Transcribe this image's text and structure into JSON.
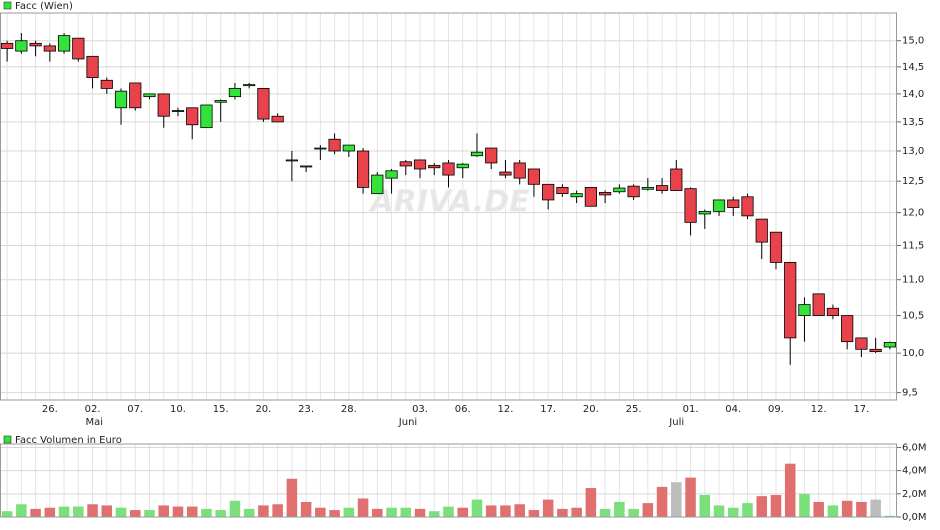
{
  "chart_data": [
    {
      "type": "candlestick",
      "log_scale": true,
      "grid": true,
      "up_color": "#33e33a",
      "down_color": "#e8424a",
      "watermark": "ARIVA.DE",
      "categories": [
        null,
        null,
        null,
        "26.",
        null,
        null,
        "02.",
        null,
        null,
        "07.",
        null,
        null,
        "10.",
        null,
        null,
        "15.",
        null,
        null,
        "20.",
        null,
        null,
        "23.",
        null,
        null,
        "28.",
        null,
        null,
        null,
        null,
        "03.",
        null,
        null,
        "06.",
        null,
        null,
        "12.",
        null,
        null,
        "17.",
        null,
        null,
        "20.",
        null,
        null,
        "25.",
        null,
        null,
        null,
        "01.",
        null,
        null,
        "04.",
        null,
        null,
        "09.",
        null,
        null,
        "12.",
        null,
        null,
        "17.",
        null,
        null,
        null
      ],
      "months": [
        null,
        null,
        null,
        null,
        null,
        null,
        "Mai",
        null,
        null,
        null,
        null,
        null,
        null,
        null,
        null,
        null,
        null,
        null,
        null,
        null,
        null,
        null,
        null,
        null,
        null,
        null,
        null,
        null,
        "Juni",
        null,
        null,
        null,
        null,
        null,
        null,
        null,
        null,
        null,
        null,
        null,
        null,
        null,
        null,
        null,
        null,
        null,
        null,
        "Juli",
        null,
        null,
        null,
        null,
        null,
        null,
        null,
        null,
        null,
        null,
        null,
        null,
        null,
        null,
        null
      ],
      "series": [
        {
          "name": "Facc (Wien)",
          "open": [
            14.95,
            14.8,
            14.95,
            14.9,
            14.8,
            15.05,
            14.7,
            14.25,
            13.75,
            14.2,
            13.95,
            14.0,
            13.7,
            13.75,
            13.4,
            13.85,
            13.95,
            14.15,
            14.1,
            13.6,
            12.85,
            12.75,
            13.05,
            13.2,
            13.0,
            13.0,
            12.3,
            12.55,
            12.82,
            12.85,
            12.76,
            12.8,
            12.72,
            12.92,
            13.05,
            12.65,
            12.8,
            12.7,
            12.45,
            12.4,
            12.25,
            12.4,
            12.32,
            12.33,
            12.42,
            12.37,
            12.43,
            12.7,
            12.38,
            11.98,
            12.02,
            12.2,
            12.25,
            11.9,
            11.7,
            11.25,
            10.5,
            10.8,
            10.6,
            10.5,
            10.2,
            10.05,
            10.08
          ],
          "high": [
            15.0,
            15.15,
            15.0,
            14.95,
            15.15,
            15.05,
            14.7,
            14.3,
            14.1,
            14.2,
            14.0,
            14.0,
            13.75,
            13.75,
            13.8,
            13.9,
            14.2,
            14.2,
            14.1,
            13.65,
            13.0,
            12.75,
            13.1,
            13.3,
            13.1,
            13.05,
            12.65,
            12.7,
            12.85,
            12.85,
            12.8,
            12.85,
            12.8,
            13.3,
            13.05,
            12.85,
            12.85,
            12.7,
            12.45,
            12.45,
            12.35,
            12.4,
            12.35,
            12.45,
            12.45,
            12.55,
            12.55,
            12.85,
            12.4,
            12.05,
            12.2,
            12.25,
            12.3,
            11.9,
            11.7,
            11.25,
            10.75,
            10.8,
            10.65,
            10.5,
            10.2,
            10.2,
            10.15
          ],
          "low": [
            14.6,
            14.75,
            14.7,
            14.6,
            14.75,
            14.6,
            14.1,
            14.0,
            13.45,
            13.7,
            13.9,
            13.4,
            13.6,
            13.2,
            13.4,
            13.5,
            13.9,
            14.1,
            13.5,
            13.5,
            12.5,
            12.65,
            12.85,
            12.95,
            12.9,
            12.3,
            12.3,
            12.3,
            12.6,
            12.55,
            12.6,
            12.4,
            12.55,
            12.9,
            12.7,
            12.55,
            12.45,
            12.25,
            12.05,
            12.25,
            12.15,
            12.1,
            12.15,
            12.3,
            12.2,
            12.35,
            12.3,
            12.35,
            11.65,
            11.75,
            11.95,
            11.95,
            11.9,
            11.3,
            11.15,
            9.85,
            10.15,
            10.5,
            10.45,
            10.05,
            9.95,
            10.0,
            10.05
          ],
          "close": [
            14.85,
            15.0,
            14.9,
            14.8,
            15.1,
            14.65,
            14.3,
            14.1,
            14.05,
            13.75,
            14.0,
            13.6,
            13.7,
            13.45,
            13.8,
            13.88,
            14.1,
            14.17,
            13.55,
            13.5,
            12.85,
            12.75,
            13.05,
            13.0,
            13.1,
            12.4,
            12.6,
            12.67,
            12.75,
            12.7,
            12.72,
            12.6,
            12.78,
            12.98,
            12.8,
            12.6,
            12.55,
            12.45,
            12.2,
            12.3,
            12.3,
            12.1,
            12.28,
            12.39,
            12.25,
            12.4,
            12.35,
            12.35,
            11.85,
            12.02,
            12.2,
            12.08,
            11.95,
            11.55,
            11.25,
            10.2,
            10.65,
            10.5,
            10.5,
            10.15,
            10.05,
            10.02,
            10.14
          ]
        }
      ],
      "ylim": [
        9.41,
        15.55
      ],
      "yticks": [
        {
          "value": 9.5,
          "label": "9,5"
        },
        {
          "value": 10,
          "label": "10,0"
        },
        {
          "value": 10.5,
          "label": "10,5"
        },
        {
          "value": 11,
          "label": "11,0"
        },
        {
          "value": 11.5,
          "label": "11,5"
        },
        {
          "value": 12,
          "label": "12,0"
        },
        {
          "value": 12.5,
          "label": "12,5"
        },
        {
          "value": 13,
          "label": "13,0"
        },
        {
          "value": 13.5,
          "label": "13,5"
        },
        {
          "value": 14,
          "label": "14,0"
        },
        {
          "value": 14.5,
          "label": "14,5"
        },
        {
          "value": 15,
          "label": "15,0"
        }
      ]
    },
    {
      "type": "bar",
      "grid": true,
      "series": [
        {
          "name": "Facc Volumen in Euro",
          "values": [
            0.5,
            1.1,
            0.7,
            0.8,
            0.9,
            0.9,
            1.1,
            1.0,
            0.8,
            0.6,
            0.6,
            1.0,
            0.9,
            0.9,
            0.7,
            0.6,
            1.4,
            0.7,
            1.0,
            1.1,
            3.3,
            1.3,
            0.8,
            0.6,
            0.8,
            1.6,
            0.7,
            0.8,
            0.8,
            0.7,
            0.5,
            0.9,
            0.8,
            1.5,
            1.0,
            1.0,
            1.1,
            0.6,
            1.5,
            0.7,
            0.8,
            2.5,
            0.7,
            1.3,
            0.7,
            1.2,
            2.6,
            3.0,
            3.4,
            1.9,
            1.0,
            0.8,
            1.2,
            1.8,
            1.9,
            4.6,
            2.0,
            1.3,
            1.0,
            1.4,
            1.3,
            1.5,
            0.1
          ],
          "colors": [
            "#7be07b",
            "#7be07b",
            "#e07070",
            "#e07070",
            "#7be07b",
            "#7be07b",
            "#e07070",
            "#e07070",
            "#7be07b",
            "#e07070",
            "#7be07b",
            "#e07070",
            "#e07070",
            "#e07070",
            "#7be07b",
            "#7be07b",
            "#7be07b",
            "#7be07b",
            "#e07070",
            "#e07070",
            "#e07070",
            "#e07070",
            "#e07070",
            "#e07070",
            "#7be07b",
            "#e07070",
            "#e07070",
            "#7be07b",
            "#7be07b",
            "#e07070",
            "#7be07b",
            "#7be07b",
            "#e07070",
            "#7be07b",
            "#e07070",
            "#e07070",
            "#e07070",
            "#e07070",
            "#e07070",
            "#e07070",
            "#e07070",
            "#e07070",
            "#7be07b",
            "#7be07b",
            "#7be07b",
            "#e07070",
            "#e07070",
            "#bdbdbd",
            "#e07070",
            "#7be07b",
            "#7be07b",
            "#7be07b",
            "#7be07b",
            "#e07070",
            "#e07070",
            "#e07070",
            "#7be07b",
            "#e07070",
            "#7be07b",
            "#e07070",
            "#e07070",
            "#bdbdbd",
            "#7be07b"
          ]
        }
      ],
      "ylim": [
        0,
        6.3
      ],
      "yticks": [
        {
          "value": 0,
          "label": "0,0M"
        },
        {
          "value": 2,
          "label": "2,0M"
        },
        {
          "value": 4,
          "label": "4,0M"
        },
        {
          "value": 6,
          "label": "6,0M"
        }
      ]
    }
  ]
}
